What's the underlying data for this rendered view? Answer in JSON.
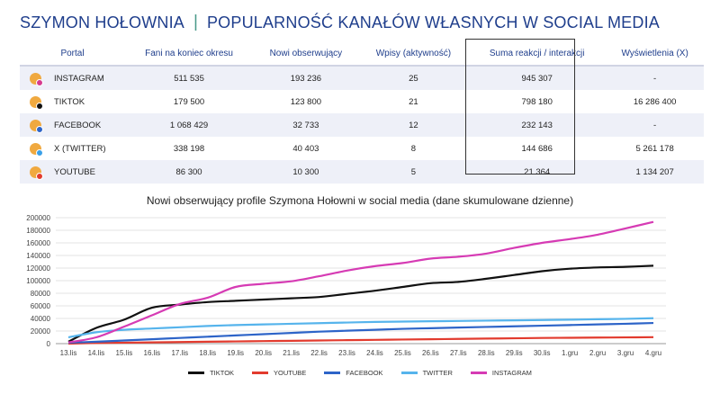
{
  "header": {
    "left": "SZYMON HOŁOWNIA",
    "separator": "|",
    "right": "POPULARNOŚĆ KANAŁÓW WŁASNYCH W SOCIAL MEDIA"
  },
  "table": {
    "columns": [
      "Portal",
      "Fani na koniec okresu",
      "Nowi obserwujący",
      "Wpisy (aktywność)",
      "Suma reakcji / interakcji",
      "Wyświetlenia (X)"
    ],
    "rows": [
      {
        "portal": "INSTAGRAM",
        "icon": "instagram-icon",
        "badge": "#d63b8f",
        "fans": "511 535",
        "new": "193 236",
        "posts": "25",
        "reactions": "945 307",
        "views": "-"
      },
      {
        "portal": "TIKTOK",
        "icon": "tiktok-icon",
        "badge": "#111111",
        "fans": "179 500",
        "new": "123 800",
        "posts": "21",
        "reactions": "798 180",
        "views": "16 286 400"
      },
      {
        "portal": "FACEBOOK",
        "icon": "facebook-icon",
        "badge": "#2d64c8",
        "fans": "1 068 429",
        "new": "32 733",
        "posts": "12",
        "reactions": "232 143",
        "views": "-"
      },
      {
        "portal": "X (TWITTER)",
        "icon": "x-twitter-icon",
        "badge": "#3aa0e8",
        "fans": "338 198",
        "new": "40 403",
        "posts": "8",
        "reactions": "144 686",
        "views": "5 261 178"
      },
      {
        "portal": "YOUTUBE",
        "icon": "youtube-icon",
        "badge": "#e23b2e",
        "fans": "86 300",
        "new": "10 300",
        "posts": "5",
        "reactions": "21 364",
        "views": "1 134 207"
      }
    ]
  },
  "chart_data": {
    "type": "line",
    "title": "Nowi obserwujący profile Szymona Hołowni w social media (dane skumulowane dzienne)",
    "categories": [
      "13.lis",
      "14.lis",
      "15.lis",
      "16.lis",
      "17.lis",
      "18.lis",
      "19.lis",
      "20.lis",
      "21.lis",
      "22.lis",
      "23.lis",
      "24.lis",
      "25.lis",
      "26.lis",
      "27.lis",
      "28.lis",
      "29.lis",
      "30.lis",
      "1.gru",
      "2.gru",
      "3.gru",
      "4.gru"
    ],
    "ylim": [
      0,
      200000
    ],
    "yticks": [
      "0",
      "20000",
      "40000",
      "60000",
      "80000",
      "100000",
      "120000",
      "140000",
      "160000",
      "180000",
      "200000"
    ],
    "legend_position": "bottom",
    "series": [
      {
        "name": "TIKTOK",
        "color": "#111111",
        "values": [
          3000,
          25000,
          38000,
          57000,
          62000,
          66000,
          68000,
          70000,
          72000,
          74000,
          79000,
          84000,
          90000,
          96000,
          98000,
          103000,
          109000,
          115000,
          119000,
          121000,
          122000,
          123800
        ]
      },
      {
        "name": "YOUTUBE",
        "color": "#e23b2e",
        "values": [
          0,
          1000,
          1500,
          2000,
          2500,
          3000,
          3500,
          4000,
          4500,
          5000,
          5500,
          6000,
          6500,
          7000,
          7500,
          8000,
          8500,
          9000,
          9300,
          9600,
          9900,
          10300
        ]
      },
      {
        "name": "FACEBOOK",
        "color": "#2d64c8",
        "values": [
          1500,
          3000,
          5000,
          7000,
          9000,
          11000,
          13000,
          15000,
          17000,
          19000,
          20500,
          22000,
          23500,
          24500,
          25500,
          26500,
          27500,
          28500,
          29500,
          30500,
          31500,
          32733
        ]
      },
      {
        "name": "TWITTER",
        "color": "#56b4ec",
        "values": [
          10000,
          18000,
          22000,
          24000,
          26000,
          28000,
          29500,
          30500,
          31500,
          32500,
          33500,
          34500,
          35000,
          35500,
          36000,
          36500,
          37000,
          37500,
          38000,
          38700,
          39400,
          40403
        ]
      },
      {
        "name": "INSTAGRAM",
        "color": "#d63bb4",
        "values": [
          2000,
          10000,
          27000,
          45000,
          63000,
          73000,
          90000,
          95000,
          99000,
          107000,
          116000,
          123000,
          128000,
          135000,
          138000,
          143000,
          152000,
          160000,
          166000,
          173000,
          183000,
          193236
        ]
      }
    ]
  }
}
